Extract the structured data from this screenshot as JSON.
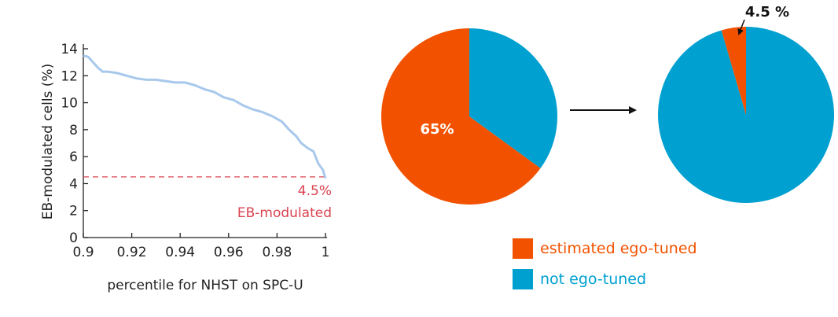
{
  "chart_data": [
    {
      "type": "line",
      "xlabel": "percentile for NHST on SPC-U",
      "ylabel": "EB-modulated cells (%)",
      "xlim": [
        0.9,
        1.0
      ],
      "ylim": [
        0,
        14
      ],
      "xticks": [
        "0.9",
        "0.92",
        "0.94",
        "0.96",
        "0.98",
        "1"
      ],
      "yticks": [
        "0",
        "2",
        "4",
        "6",
        "8",
        "10",
        "12",
        "14"
      ],
      "series": [
        {
          "color": "#a8c8ec",
          "x": [
            0.9,
            0.902,
            0.904,
            0.906,
            0.908,
            0.91,
            0.914,
            0.918,
            0.922,
            0.926,
            0.93,
            0.934,
            0.938,
            0.942,
            0.946,
            0.95,
            0.954,
            0.958,
            0.962,
            0.966,
            0.97,
            0.974,
            0.978,
            0.982,
            0.985,
            0.988,
            0.99,
            0.993,
            0.995,
            0.997,
            0.999,
            1.0
          ],
          "y": [
            13.5,
            13.4,
            13.0,
            12.6,
            12.3,
            12.3,
            12.2,
            12.0,
            11.8,
            11.7,
            11.7,
            11.6,
            11.5,
            11.5,
            11.3,
            11.0,
            10.8,
            10.4,
            10.2,
            9.8,
            9.5,
            9.3,
            9.0,
            8.6,
            8.0,
            7.5,
            7.0,
            6.6,
            6.4,
            5.5,
            5.0,
            4.4
          ]
        }
      ],
      "reference_line": {
        "y": 4.5,
        "color": "#d9424f",
        "style": "dashed"
      },
      "annotations": [
        "4.5%",
        "EB-modulated"
      ]
    },
    {
      "type": "pie",
      "labels": [
        "estimated ego-tuned",
        "not ego-tuned"
      ],
      "values": [
        65,
        35
      ],
      "colors": [
        "#f25200",
        "#00a0d0"
      ],
      "slice_label": "65%"
    },
    {
      "type": "pie",
      "labels": [
        "estimated ego-tuned",
        "not ego-tuned"
      ],
      "values": [
        4.5,
        95.5
      ],
      "colors": [
        "#f25200",
        "#00a0d0"
      ],
      "slice_label": "4.5 %"
    }
  ],
  "legend": {
    "items": [
      {
        "label": "estimated ego-tuned",
        "color": "#f25200"
      },
      {
        "label": "not ego-tuned",
        "color": "#00a0d0"
      }
    ]
  }
}
